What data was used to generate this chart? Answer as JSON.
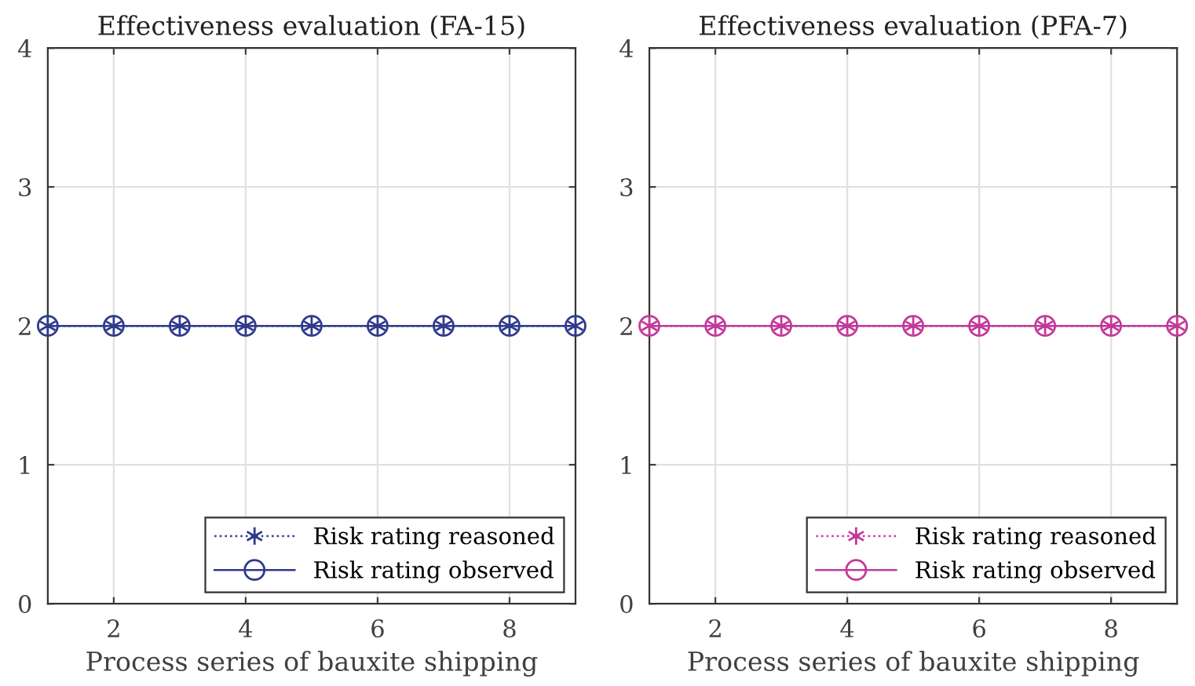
{
  "chart_data": [
    {
      "type": "line",
      "title": "Effectiveness evaluation (FA-15)",
      "xlabel": "Process series of bauxite shipping",
      "x": [
        1,
        2,
        3,
        4,
        5,
        6,
        7,
        8,
        9
      ],
      "xlim": [
        1,
        9
      ],
      "xticks": [
        2,
        4,
        6,
        8
      ],
      "ylim": [
        0,
        4
      ],
      "yticks": [
        0,
        1,
        2,
        3,
        4
      ],
      "grid": true,
      "legend": "bottom right",
      "series": [
        {
          "name": "Risk rating reasoned",
          "color": "#2e3a8c",
          "marker": "cross",
          "line_style": "dotted",
          "values": [
            2,
            2,
            2,
            2,
            2,
            2,
            2,
            2,
            2
          ]
        },
        {
          "name": "Risk rating observed",
          "color": "#2e3a8c",
          "marker": "circle",
          "line_style": "solid",
          "values": [
            2,
            2,
            2,
            2,
            2,
            2,
            2,
            2,
            2
          ]
        }
      ]
    },
    {
      "type": "line",
      "title": "Effectiveness evaluation (PFA-7)",
      "xlabel": "Process series of bauxite shipping",
      "x": [
        1,
        2,
        3,
        4,
        5,
        6,
        7,
        8,
        9
      ],
      "xlim": [
        1,
        9
      ],
      "xticks": [
        2,
        4,
        6,
        8
      ],
      "ylim": [
        0,
        4
      ],
      "yticks": [
        0,
        1,
        2,
        3,
        4
      ],
      "grid": true,
      "legend": "bottom right",
      "series": [
        {
          "name": "Risk rating reasoned",
          "color": "#c2399a",
          "marker": "cross",
          "line_style": "dotted",
          "values": [
            2,
            2,
            2,
            2,
            2,
            2,
            2,
            2,
            2
          ]
        },
        {
          "name": "Risk rating observed",
          "color": "#c2399a",
          "marker": "circle",
          "line_style": "solid",
          "values": [
            2,
            2,
            2,
            2,
            2,
            2,
            2,
            2,
            2
          ]
        }
      ]
    }
  ]
}
